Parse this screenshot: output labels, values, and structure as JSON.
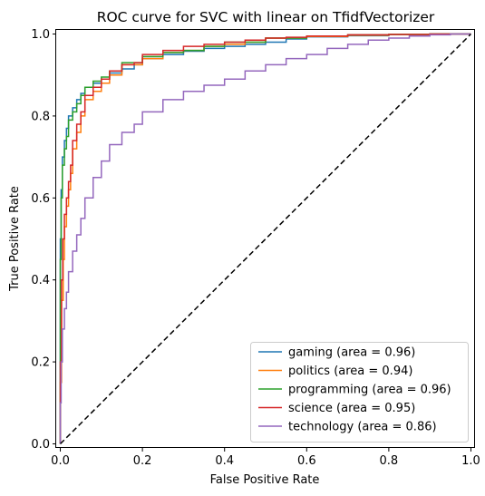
{
  "chart_data": {
    "type": "line",
    "title": "ROC curve for SVC with linear on TfidfVectorizer",
    "xlabel": "False Positive Rate",
    "ylabel": "True Positive Rate",
    "xlim": [
      -0.01,
      1.01
    ],
    "ylim": [
      -0.01,
      1.01
    ],
    "xticks": [
      "0.0",
      "0.2",
      "0.4",
      "0.6",
      "0.8",
      "1.0"
    ],
    "yticks": [
      "0.0",
      "0.2",
      "0.4",
      "0.6",
      "0.8",
      "1.0"
    ],
    "grid": false,
    "legend_position": "lower-right",
    "diagonal": {
      "x": [
        0,
        1
      ],
      "y": [
        0,
        1
      ],
      "style": "dashed",
      "color": "#000000"
    },
    "series": [
      {
        "name": "gaming (area = 0.96)",
        "color": "#1f77b4",
        "x": [
          0,
          0.002,
          0.005,
          0.01,
          0.015,
          0.02,
          0.03,
          0.04,
          0.05,
          0.06,
          0.08,
          0.1,
          0.12,
          0.15,
          0.18,
          0.2,
          0.25,
          0.3,
          0.35,
          0.4,
          0.45,
          0.5,
          0.55,
          0.6,
          0.7,
          0.8,
          0.9,
          1.0
        ],
        "y": [
          0,
          0.5,
          0.62,
          0.7,
          0.74,
          0.77,
          0.8,
          0.82,
          0.84,
          0.855,
          0.87,
          0.88,
          0.89,
          0.905,
          0.915,
          0.925,
          0.94,
          0.95,
          0.958,
          0.965,
          0.97,
          0.975,
          0.98,
          0.988,
          0.993,
          0.996,
          0.999,
          1.0
        ]
      },
      {
        "name": "politics (area = 0.94)",
        "color": "#ff7f0e",
        "x": [
          0,
          0.003,
          0.007,
          0.01,
          0.015,
          0.02,
          0.025,
          0.03,
          0.04,
          0.05,
          0.06,
          0.08,
          0.1,
          0.12,
          0.15,
          0.2,
          0.25,
          0.3,
          0.35,
          0.4,
          0.45,
          0.5,
          0.6,
          0.7,
          0.8,
          0.9,
          1.0
        ],
        "y": [
          0,
          0.15,
          0.35,
          0.45,
          0.53,
          0.58,
          0.62,
          0.66,
          0.72,
          0.76,
          0.8,
          0.84,
          0.86,
          0.88,
          0.9,
          0.925,
          0.94,
          0.955,
          0.96,
          0.97,
          0.975,
          0.98,
          0.99,
          0.994,
          0.997,
          0.999,
          1.0
        ]
      },
      {
        "name": "programming (area = 0.96)",
        "color": "#2ca02c",
        "x": [
          0,
          0.002,
          0.005,
          0.01,
          0.015,
          0.02,
          0.03,
          0.04,
          0.05,
          0.06,
          0.08,
          0.1,
          0.12,
          0.15,
          0.2,
          0.25,
          0.3,
          0.35,
          0.4,
          0.5,
          0.6,
          0.7,
          0.8,
          0.9,
          1.0
        ],
        "y": [
          0,
          0.45,
          0.6,
          0.68,
          0.72,
          0.75,
          0.79,
          0.81,
          0.83,
          0.85,
          0.87,
          0.885,
          0.895,
          0.91,
          0.93,
          0.945,
          0.955,
          0.96,
          0.97,
          0.98,
          0.99,
          0.995,
          0.998,
          0.999,
          1.0
        ]
      },
      {
        "name": "science (area = 0.95)",
        "color": "#d62728",
        "x": [
          0,
          0.003,
          0.006,
          0.01,
          0.015,
          0.02,
          0.025,
          0.03,
          0.04,
          0.05,
          0.06,
          0.08,
          0.1,
          0.12,
          0.15,
          0.18,
          0.2,
          0.25,
          0.3,
          0.35,
          0.4,
          0.45,
          0.5,
          0.55,
          0.6,
          0.7,
          0.8,
          0.9,
          1.0
        ],
        "y": [
          0,
          0.2,
          0.4,
          0.5,
          0.56,
          0.6,
          0.64,
          0.68,
          0.74,
          0.78,
          0.81,
          0.85,
          0.87,
          0.89,
          0.91,
          0.925,
          0.93,
          0.95,
          0.96,
          0.97,
          0.975,
          0.98,
          0.985,
          0.99,
          0.992,
          0.995,
          0.998,
          0.999,
          1.0
        ]
      },
      {
        "name": "technology (area = 0.86)",
        "color": "#9467bd",
        "x": [
          0,
          0.002,
          0.005,
          0.01,
          0.015,
          0.02,
          0.03,
          0.04,
          0.05,
          0.06,
          0.08,
          0.1,
          0.12,
          0.15,
          0.18,
          0.2,
          0.25,
          0.3,
          0.35,
          0.4,
          0.45,
          0.5,
          0.55,
          0.6,
          0.65,
          0.7,
          0.75,
          0.8,
          0.85,
          0.9,
          0.95,
          1.0
        ],
        "y": [
          0,
          0.1,
          0.2,
          0.28,
          0.33,
          0.37,
          0.42,
          0.47,
          0.51,
          0.55,
          0.6,
          0.65,
          0.69,
          0.73,
          0.76,
          0.78,
          0.81,
          0.84,
          0.86,
          0.875,
          0.89,
          0.91,
          0.925,
          0.94,
          0.95,
          0.965,
          0.975,
          0.985,
          0.99,
          0.995,
          0.998,
          1.0
        ]
      }
    ]
  }
}
